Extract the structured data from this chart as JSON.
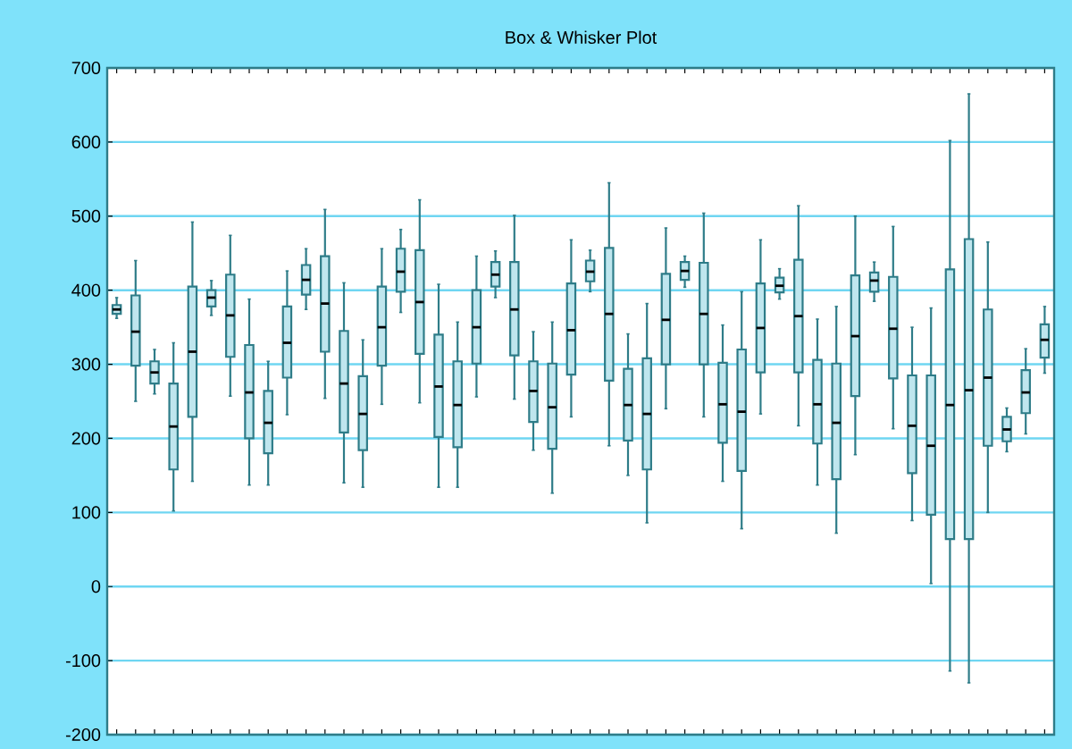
{
  "chart_data": {
    "type": "box",
    "title": "Box & Whisker Plot",
    "categories": [
      null,
      null,
      null,
      null,
      null,
      null,
      null,
      null,
      null,
      null,
      null,
      null,
      null,
      null,
      null,
      null,
      null,
      null,
      null,
      null,
      null,
      null,
      null,
      null,
      null,
      null,
      null,
      null,
      null,
      null,
      null,
      null,
      null,
      null,
      null,
      null,
      null,
      null,
      null,
      null,
      null,
      null,
      null,
      null,
      null,
      null,
      null,
      null,
      null,
      null
    ],
    "boxes": [
      {
        "low": 362,
        "q1": 368,
        "median": 374,
        "q3": 380,
        "high": 390
      },
      {
        "low": 250,
        "q1": 298,
        "median": 344,
        "q3": 393,
        "high": 440
      },
      {
        "low": 260,
        "q1": 274,
        "median": 289,
        "q3": 304,
        "high": 320
      },
      {
        "low": 102,
        "q1": 158,
        "median": 216,
        "q3": 274,
        "high": 329
      },
      {
        "low": 142,
        "q1": 229,
        "median": 317,
        "q3": 405,
        "high": 492
      },
      {
        "low": 366,
        "q1": 378,
        "median": 390,
        "q3": 400,
        "high": 413
      },
      {
        "low": 257,
        "q1": 310,
        "median": 366,
        "q3": 421,
        "high": 474
      },
      {
        "low": 137,
        "q1": 200,
        "median": 262,
        "q3": 326,
        "high": 388
      },
      {
        "low": 137,
        "q1": 180,
        "median": 221,
        "q3": 264,
        "high": 304
      },
      {
        "low": 232,
        "q1": 282,
        "median": 329,
        "q3": 378,
        "high": 426
      },
      {
        "low": 374,
        "q1": 394,
        "median": 414,
        "q3": 434,
        "high": 456
      },
      {
        "low": 254,
        "q1": 317,
        "median": 382,
        "q3": 446,
        "high": 509
      },
      {
        "low": 140,
        "q1": 208,
        "median": 274,
        "q3": 345,
        "high": 410
      },
      {
        "low": 134,
        "q1": 184,
        "median": 233,
        "q3": 284,
        "high": 333
      },
      {
        "low": 246,
        "q1": 298,
        "median": 350,
        "q3": 405,
        "high": 456
      },
      {
        "low": 370,
        "q1": 398,
        "median": 425,
        "q3": 456,
        "high": 482
      },
      {
        "low": 248,
        "q1": 314,
        "median": 384,
        "q3": 454,
        "high": 522
      },
      {
        "low": 134,
        "q1": 202,
        "median": 270,
        "q3": 340,
        "high": 408
      },
      {
        "low": 134,
        "q1": 188,
        "median": 245,
        "q3": 304,
        "high": 357
      },
      {
        "low": 256,
        "q1": 301,
        "median": 350,
        "q3": 400,
        "high": 446
      },
      {
        "low": 390,
        "q1": 405,
        "median": 421,
        "q3": 438,
        "high": 453
      },
      {
        "low": 253,
        "q1": 312,
        "median": 374,
        "q3": 438,
        "high": 501
      },
      {
        "low": 184,
        "q1": 222,
        "median": 264,
        "q3": 304,
        "high": 344
      },
      {
        "low": 126,
        "q1": 186,
        "median": 242,
        "q3": 301,
        "high": 357
      },
      {
        "low": 229,
        "q1": 286,
        "median": 346,
        "q3": 409,
        "high": 468
      },
      {
        "low": 398,
        "q1": 412,
        "median": 425,
        "q3": 440,
        "high": 454
      },
      {
        "low": 190,
        "q1": 278,
        "median": 368,
        "q3": 457,
        "high": 545
      },
      {
        "low": 150,
        "q1": 197,
        "median": 245,
        "q3": 294,
        "high": 341
      },
      {
        "low": 86,
        "q1": 158,
        "median": 233,
        "q3": 308,
        "high": 382
      },
      {
        "low": 240,
        "q1": 300,
        "median": 360,
        "q3": 422,
        "high": 484
      },
      {
        "low": 404,
        "q1": 414,
        "median": 426,
        "q3": 438,
        "high": 446
      },
      {
        "low": 229,
        "q1": 300,
        "median": 368,
        "q3": 437,
        "high": 504
      },
      {
        "low": 142,
        "q1": 194,
        "median": 246,
        "q3": 302,
        "high": 353
      },
      {
        "low": 78,
        "q1": 156,
        "median": 236,
        "q3": 320,
        "high": 398
      },
      {
        "low": 233,
        "q1": 289,
        "median": 349,
        "q3": 409,
        "high": 468
      },
      {
        "low": 388,
        "q1": 397,
        "median": 406,
        "q3": 417,
        "high": 429
      },
      {
        "low": 217,
        "q1": 289,
        "median": 365,
        "q3": 441,
        "high": 514
      },
      {
        "low": 137,
        "q1": 193,
        "median": 246,
        "q3": 306,
        "high": 361
      },
      {
        "low": 72,
        "q1": 145,
        "median": 221,
        "q3": 301,
        "high": 378
      },
      {
        "low": 178,
        "q1": 257,
        "median": 338,
        "q3": 420,
        "high": 500
      },
      {
        "low": 385,
        "q1": 398,
        "median": 413,
        "q3": 424,
        "high": 438
      },
      {
        "low": 213,
        "q1": 281,
        "median": 348,
        "q3": 418,
        "high": 486
      },
      {
        "low": 89,
        "q1": 153,
        "median": 217,
        "q3": 285,
        "high": 350
      },
      {
        "low": 4,
        "q1": 97,
        "median": 190,
        "q3": 285,
        "high": 376
      },
      {
        "low": -114,
        "q1": 64,
        "median": 245,
        "q3": 428,
        "high": 602
      },
      {
        "low": -130,
        "q1": 64,
        "median": 265,
        "q3": 469,
        "high": 665
      },
      {
        "low": 100,
        "q1": 190,
        "median": 282,
        "q3": 374,
        "high": 465
      },
      {
        "low": 182,
        "q1": 196,
        "median": 212,
        "q3": 229,
        "high": 241
      },
      {
        "low": 206,
        "q1": 234,
        "median": 262,
        "q3": 292,
        "high": 321
      },
      {
        "low": 288,
        "q1": 309,
        "median": 333,
        "q3": 354,
        "high": 378
      }
    ],
    "ylim": [
      -200,
      700
    ],
    "yticks": [
      -200,
      -100,
      0,
      100,
      200,
      300,
      400,
      500,
      600,
      700
    ],
    "grid": "y",
    "tick_labels": "y",
    "color": "#bfe6ee"
  }
}
